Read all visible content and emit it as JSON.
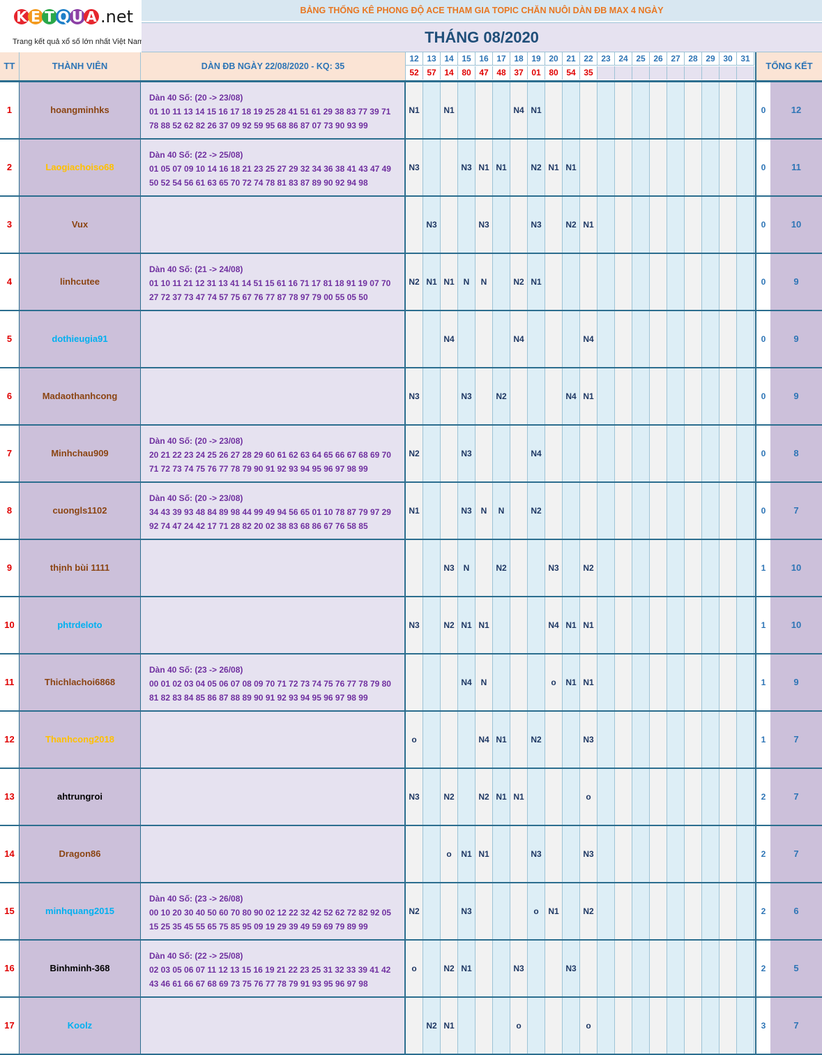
{
  "logo": {
    "letters": [
      "K",
      "E",
      "T",
      "Q",
      "U",
      "A"
    ],
    "letter_colors": [
      "#e6262e",
      "#f39a1e",
      "#2aa84a",
      "#1e7fc8",
      "#8c3fa5",
      "#e6262e"
    ],
    "suffix": ".net",
    "tagline": "Trang kết quả xổ số lớn nhất Việt Nam"
  },
  "title": "BẢNG THỐNG KÊ PHONG ĐỘ ACE THAM GIA TOPIC CHĂN NUÔI DÀN ĐB MAX 4 NGÀY",
  "month": "THÁNG 08/2020",
  "headers": {
    "tt": "TT",
    "member": "THÀNH VIÊN",
    "dan": "DÀN ĐB NGÀY 22/08/2020 - KQ: 35",
    "total": "TỔNG KẾT"
  },
  "days": [
    "12",
    "13",
    "14",
    "15",
    "16",
    "17",
    "18",
    "19",
    "20",
    "21",
    "22",
    "23",
    "24",
    "25",
    "26",
    "27",
    "28",
    "29",
    "30",
    "31"
  ],
  "results": [
    "52",
    "57",
    "14",
    "80",
    "47",
    "48",
    "37",
    "01",
    "80",
    "54",
    "35",
    "",
    "",
    "",
    "",
    "",
    "",
    "",
    "",
    ""
  ],
  "rows": [
    {
      "tt": "1",
      "name": "hoangminhks",
      "color": "#8b4513",
      "dan": [
        "Dàn 40 Số: (20 -> 23/08)",
        "01 10 11 13 14 15 16 17 18 19 25 28 41 51 61 29 38 83 77 39 71",
        "78 88 52 62 82 26 37 09 92 59 95 68 86 87 07 73 90 93 99"
      ],
      "marks": [
        "N1",
        "",
        "N1",
        "",
        "",
        "",
        "N4",
        "N1",
        "",
        "",
        "",
        "",
        "",
        "",
        "",
        "",
        "",
        "",
        "",
        ""
      ],
      "k": "0",
      "total": "12"
    },
    {
      "tt": "2",
      "name": "Laogiachoiso68",
      "color": "#ffc000",
      "dan": [
        "Dàn 40 Số: (22 -> 25/08)",
        "01 05 07 09 10 14 16 18 21 23 25 27 29 32 34 36 38 41 43 47 49",
        "50 52 54 56 61 63 65 70 72 74 78 81 83 87 89 90 92 94 98"
      ],
      "marks": [
        "N3",
        "",
        "",
        "N3",
        "N1",
        "N1",
        "",
        "N2",
        "N1",
        "N1",
        "",
        "",
        "",
        "",
        "",
        "",
        "",
        "",
        "",
        ""
      ],
      "k": "0",
      "total": "11"
    },
    {
      "tt": "3",
      "name": "Vux",
      "color": "#8b4513",
      "dan": [
        "",
        "",
        ""
      ],
      "marks": [
        "",
        "N3",
        "",
        "",
        "N3",
        "",
        "",
        "N3",
        "",
        "N2",
        "N1",
        "",
        "",
        "",
        "",
        "",
        "",
        "",
        "",
        ""
      ],
      "k": "0",
      "total": "10"
    },
    {
      "tt": "4",
      "name": "linhcutee",
      "color": "#8b4513",
      "dan": [
        "Dàn 40 Số: (21 -> 24/08)",
        "01 10 11 21 12 31 13 41 14 51 15 61 16 71 17 81 18 91 19 07 70",
        "27 72 37 73 47 74 57 75 67 76 77 87 78 97 79 00 55 05 50"
      ],
      "marks": [
        "N2",
        "N1",
        "N1",
        "N",
        "N",
        "",
        "N2",
        "N1",
        "",
        "",
        "",
        "",
        "",
        "",
        "",
        "",
        "",
        "",
        "",
        ""
      ],
      "k": "0",
      "total": "9"
    },
    {
      "tt": "5",
      "name": "dothieugia91",
      "color": "#00b0f0",
      "dan": [
        "",
        "",
        ""
      ],
      "marks": [
        "",
        "",
        "N4",
        "",
        "",
        "",
        "N4",
        "",
        "",
        "",
        "N4",
        "",
        "",
        "",
        "",
        "",
        "",
        "",
        "",
        ""
      ],
      "k": "0",
      "total": "9"
    },
    {
      "tt": "6",
      "name": "Madaothanhcong",
      "color": "#8b4513",
      "dan": [
        "",
        "",
        ""
      ],
      "marks": [
        "N3",
        "",
        "",
        "N3",
        "",
        "N2",
        "",
        "",
        "",
        "N4",
        "N1",
        "",
        "",
        "",
        "",
        "",
        "",
        "",
        "",
        ""
      ],
      "k": "0",
      "total": "9"
    },
    {
      "tt": "7",
      "name": "Minhchau909",
      "color": "#8b4513",
      "dan": [
        "Dàn 40 Số: (20 -> 23/08)",
        "20 21 22 23 24 25 26 27 28 29 60 61 62 63 64 65 66 67 68 69 70",
        "71 72 73 74 75 76 77 78 79 90 91 92 93 94 95 96 97 98 99"
      ],
      "marks": [
        "N2",
        "",
        "",
        "N3",
        "",
        "",
        "",
        "N4",
        "",
        "",
        "",
        "",
        "",
        "",
        "",
        "",
        "",
        "",
        "",
        ""
      ],
      "k": "0",
      "total": "8"
    },
    {
      "tt": "8",
      "name": "cuongls1102",
      "color": "#8b4513",
      "dan": [
        "Dàn 40 Số: (20 -> 23/08)",
        "34 43 39 93 48 84 89 98 44 99 49 94 56 65 01 10 78 87 79 97 29",
        "92 74 47 24 42 17 71 28 82 20 02 38 83 68 86 67 76 58 85"
      ],
      "marks": [
        "N1",
        "",
        "",
        "N3",
        "N",
        "N",
        "",
        "N2",
        "",
        "",
        "",
        "",
        "",
        "",
        "",
        "",
        "",
        "",
        "",
        ""
      ],
      "k": "0",
      "total": "7"
    },
    {
      "tt": "9",
      "name": "thịnh bùi 1111",
      "color": "#8b4513",
      "dan": [
        "",
        "",
        ""
      ],
      "marks": [
        "",
        "",
        "N3",
        "N",
        "",
        "N2",
        "",
        "",
        "N3",
        "",
        "N2",
        "",
        "",
        "",
        "",
        "",
        "",
        "",
        "",
        ""
      ],
      "k": "1",
      "total": "10"
    },
    {
      "tt": "10",
      "name": "phtrdeloto",
      "color": "#00b0f0",
      "dan": [
        "",
        "",
        ""
      ],
      "marks": [
        "N3",
        "",
        "N2",
        "N1",
        "N1",
        "",
        "",
        "",
        "N4",
        "N1",
        "N1",
        "",
        "",
        "",
        "",
        "",
        "",
        "",
        "",
        ""
      ],
      "k": "1",
      "total": "10"
    },
    {
      "tt": "11",
      "name": "Thichlachoi6868",
      "color": "#8b4513",
      "dan": [
        "Dàn 40 Số: (23 -> 26/08)",
        "00 01 02 03 04 05 06 07 08 09 70 71 72 73 74 75 76 77 78 79 80",
        "81 82 83 84 85 86 87 88 89 90 91 92 93 94 95 96 97 98 99"
      ],
      "marks": [
        "",
        "",
        "",
        "N4",
        "N",
        "",
        "",
        "",
        "o",
        "N1",
        "N1",
        "",
        "",
        "",
        "",
        "",
        "",
        "",
        "",
        ""
      ],
      "k": "1",
      "total": "9"
    },
    {
      "tt": "12",
      "name": "Thanhcong2018",
      "color": "#ffc000",
      "dan": [
        "",
        "",
        ""
      ],
      "marks": [
        "o",
        "",
        "",
        "",
        "N4",
        "N1",
        "",
        "N2",
        "",
        "",
        "N3",
        "",
        "",
        "",
        "",
        "",
        "",
        "",
        "",
        ""
      ],
      "k": "1",
      "total": "7"
    },
    {
      "tt": "13",
      "name": "ahtrungroi",
      "color": "#000000",
      "dan": [
        "",
        "",
        ""
      ],
      "marks": [
        "N3",
        "",
        "N2",
        "",
        "N2",
        "N1",
        "N1",
        "",
        "",
        "",
        "o",
        "",
        "",
        "",
        "",
        "",
        "",
        "",
        "",
        ""
      ],
      "k": "2",
      "total": "7"
    },
    {
      "tt": "14",
      "name": "Dragon86",
      "color": "#8b4513",
      "dan": [
        "",
        "",
        ""
      ],
      "marks": [
        "",
        "",
        "o",
        "N1",
        "N1",
        "",
        "",
        "N3",
        "",
        "",
        "N3",
        "",
        "",
        "",
        "",
        "",
        "",
        "",
        "",
        ""
      ],
      "k": "2",
      "total": "7"
    },
    {
      "tt": "15",
      "name": "minhquang2015",
      "color": "#00b0f0",
      "dan": [
        "Dàn 40 Số: (23 -> 26/08)",
        "00 10 20 30 40 50 60 70 80 90 02 12 22 32 42 52 62 72 82 92 05",
        "15 25 35 45 55 65 75 85 95 09 19 29 39 49 59 69 79 89 99"
      ],
      "marks": [
        "N2",
        "",
        "",
        "N3",
        "",
        "",
        "",
        "o",
        "N1",
        "",
        "N2",
        "",
        "",
        "",
        "",
        "",
        "",
        "",
        "",
        ""
      ],
      "k": "2",
      "total": "6"
    },
    {
      "tt": "16",
      "name": "Binhminh-368",
      "color": "#000000",
      "dan": [
        "Dàn 40 Số: (22 -> 25/08)",
        "02 03 05 06 07 11 12 13 15 16 19 21 22 23 25 31 32 33 39 41 42",
        "43 46 61 66 67 68 69 73 75 76 77 78 79 91 93 95 96 97 98"
      ],
      "marks": [
        "o",
        "",
        "N2",
        "N1",
        "",
        "",
        "N3",
        "",
        "",
        "N3",
        "",
        "",
        "",
        "",
        "",
        "",
        "",
        "",
        "",
        ""
      ],
      "k": "2",
      "total": "5"
    },
    {
      "tt": "17",
      "name": "Koolz",
      "color": "#00b0f0",
      "dan": [
        "",
        "",
        ""
      ],
      "marks": [
        "",
        "N2",
        "N1",
        "",
        "",
        "",
        "o",
        "",
        "",
        "",
        "o",
        "",
        "",
        "",
        "",
        "",
        "",
        "",
        "",
        ""
      ],
      "k": "3",
      "total": "7"
    }
  ]
}
